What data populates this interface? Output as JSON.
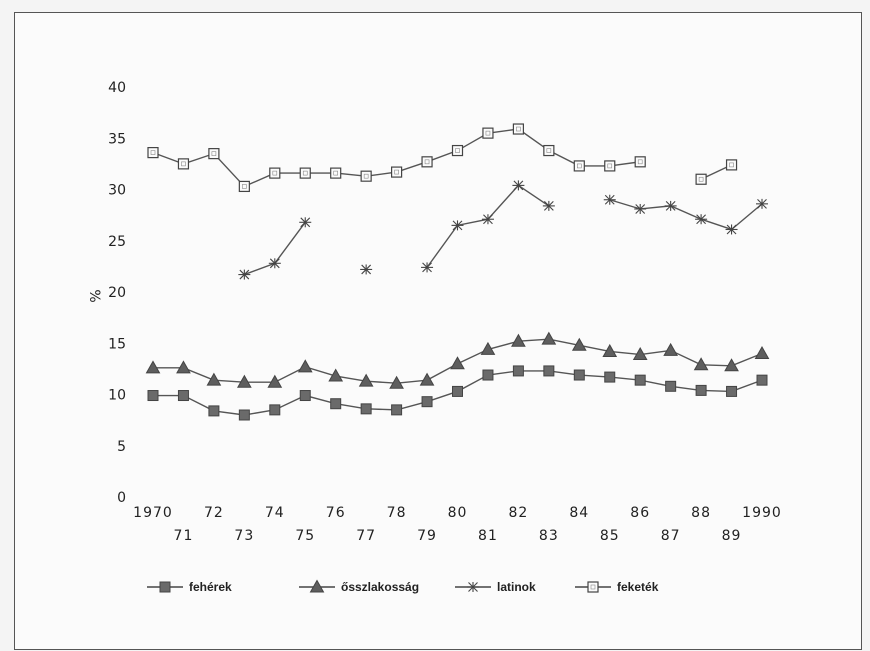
{
  "chart_data": {
    "type": "line",
    "title": "",
    "xlabel": "",
    "ylabel": "%",
    "ylim": [
      0,
      40
    ],
    "yticks": [
      0,
      5,
      10,
      15,
      20,
      25,
      30,
      35,
      40
    ],
    "x": [
      1970,
      1971,
      1972,
      1973,
      1974,
      1975,
      1976,
      1977,
      1978,
      1979,
      1980,
      1981,
      1982,
      1983,
      1984,
      1985,
      1986,
      1987,
      1988,
      1989,
      1990
    ],
    "xtick_labels": [
      "1970",
      "71",
      "72",
      "73",
      "74",
      "75",
      "76",
      "77",
      "78",
      "79",
      "80",
      "81",
      "82",
      "83",
      "84",
      "85",
      "86",
      "87",
      "88",
      "89",
      "1990"
    ],
    "grid": false,
    "legend_position": "bottom",
    "series": [
      {
        "name": "fehérek",
        "marker": "filled-square",
        "values": [
          9.9,
          9.9,
          8.4,
          8.0,
          8.5,
          9.9,
          9.1,
          8.6,
          8.5,
          9.3,
          10.3,
          11.9,
          12.3,
          12.3,
          11.9,
          11.7,
          11.4,
          10.8,
          10.4,
          10.3,
          11.4
        ]
      },
      {
        "name": "ősszlakosság",
        "marker": "filled-triangle",
        "values": [
          12.6,
          12.6,
          11.4,
          11.2,
          11.2,
          12.7,
          11.8,
          11.3,
          11.1,
          11.4,
          13.0,
          14.4,
          15.2,
          15.4,
          14.8,
          14.2,
          13.9,
          14.3,
          12.9,
          12.8,
          14.0
        ]
      },
      {
        "name": "latinok",
        "marker": "star",
        "values": [
          null,
          null,
          null,
          21.7,
          22.8,
          26.8,
          null,
          22.2,
          null,
          22.4,
          26.5,
          27.1,
          30.4,
          28.4,
          null,
          29.0,
          28.1,
          28.4,
          27.1,
          26.1,
          28.6
        ]
      },
      {
        "name": "feketék",
        "marker": "open-square",
        "values": [
          33.6,
          32.5,
          33.5,
          30.3,
          31.6,
          31.6,
          31.6,
          31.3,
          31.7,
          32.7,
          33.8,
          35.5,
          35.9,
          33.8,
          32.3,
          32.3,
          32.7,
          null,
          31.0,
          32.4,
          null
        ]
      }
    ]
  }
}
